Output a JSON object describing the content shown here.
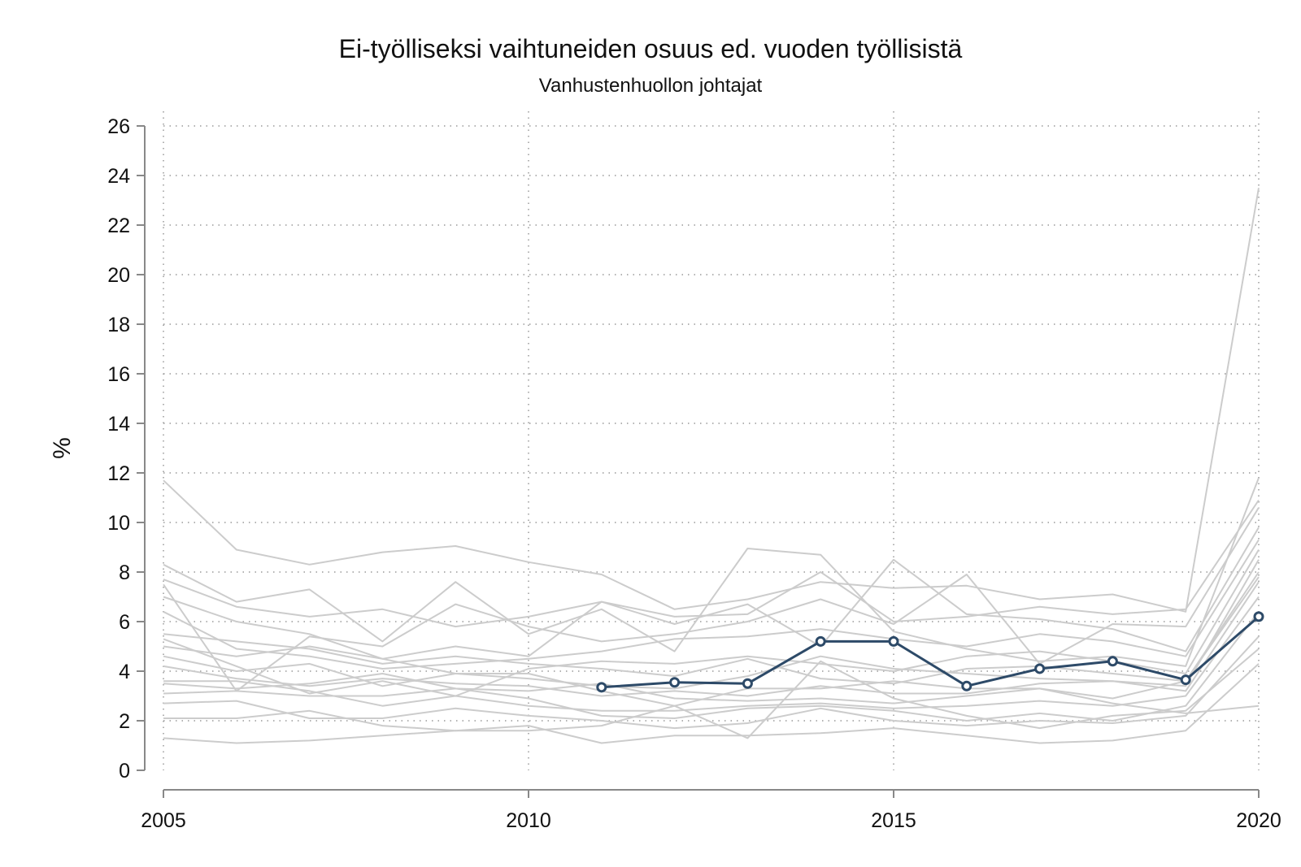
{
  "chart_data": {
    "type": "line",
    "title": "Ei-työlliseksi vaihtuneiden osuus ed. vuoden työllisistä",
    "subtitle": "Vanhustenhuollon johtajat",
    "xlabel": "",
    "ylabel": "%",
    "xlim": [
      2005,
      2020
    ],
    "ylim": [
      0,
      26
    ],
    "x_ticks": [
      "2005",
      "2010",
      "2015",
      "2020"
    ],
    "y_ticks": [
      "0",
      "2",
      "4",
      "6",
      "8",
      "10",
      "12",
      "14",
      "16",
      "18",
      "20",
      "22",
      "24",
      "26"
    ],
    "grid": "dotted",
    "colors": {
      "highlight": "#2d4a68",
      "background": "#cccccc",
      "grid": "#999999",
      "axis": "#888888"
    },
    "highlight_series": {
      "x": [
        2011,
        2012,
        2013,
        2014,
        2015,
        2016,
        2017,
        2018,
        2019,
        2020
      ],
      "values": [
        3.35,
        3.55,
        3.5,
        5.2,
        5.2,
        3.4,
        4.1,
        4.4,
        3.65,
        6.2
      ]
    },
    "background_series": [
      {
        "x": [
          2005,
          2006,
          2007,
          2008,
          2009,
          2010,
          2011,
          2012,
          2013,
          2014,
          2015,
          2016,
          2017,
          2018,
          2019,
          2020
        ],
        "values": [
          11.7,
          8.9,
          8.3,
          8.8,
          9.05,
          8.4,
          7.9,
          6.5,
          6.9,
          7.6,
          7.35,
          7.45,
          6.9,
          7.1,
          6.4,
          23.5
        ]
      },
      {
        "x": [
          2005,
          2006,
          2007,
          2008,
          2009,
          2010,
          2011,
          2012,
          2013,
          2014,
          2015,
          2016,
          2017,
          2018,
          2019,
          2020
        ],
        "values": [
          8.3,
          6.8,
          7.3,
          5.2,
          7.6,
          5.5,
          6.5,
          4.8,
          8.95,
          8.7,
          5.6,
          4.9,
          4.4,
          4.6,
          4.2,
          11.8
        ]
      },
      {
        "x": [
          2005,
          2006,
          2007,
          2008,
          2009,
          2010,
          2011,
          2012,
          2013,
          2014,
          2015,
          2016,
          2017,
          2018,
          2019,
          2020
        ],
        "values": [
          7.7,
          6.6,
          6.2,
          6.5,
          5.8,
          6.2,
          6.8,
          6.2,
          6.3,
          8.0,
          6.0,
          6.2,
          6.6,
          6.3,
          6.5,
          10.9
        ]
      },
      {
        "x": [
          2005,
          2006,
          2007,
          2008,
          2009,
          2010,
          2011,
          2012,
          2013,
          2014,
          2015,
          2016,
          2017,
          2018,
          2019,
          2020
        ],
        "values": [
          7.5,
          3.2,
          5.4,
          5.0,
          6.7,
          5.8,
          5.2,
          5.5,
          6.0,
          6.9,
          5.9,
          7.9,
          4.3,
          5.9,
          5.8,
          10.6
        ]
      },
      {
        "x": [
          2005,
          2006,
          2007,
          2008,
          2009,
          2010,
          2011,
          2012,
          2013,
          2014,
          2015,
          2016,
          2017,
          2018,
          2019,
          2020
        ],
        "values": [
          7.0,
          6.0,
          5.5,
          4.5,
          5.0,
          4.6,
          6.8,
          5.9,
          6.7,
          5.0,
          8.5,
          6.3,
          6.1,
          5.7,
          4.8,
          9.8
        ]
      },
      {
        "x": [
          2005,
          2006,
          2007,
          2008,
          2009,
          2010,
          2011,
          2012,
          2013,
          2014,
          2015,
          2016,
          2017,
          2018,
          2019,
          2020
        ],
        "values": [
          6.4,
          4.9,
          4.6,
          4.1,
          4.3,
          4.5,
          4.8,
          5.3,
          5.4,
          5.7,
          5.3,
          5.0,
          5.5,
          5.2,
          4.6,
          9.3
        ]
      },
      {
        "x": [
          2005,
          2006,
          2007,
          2008,
          2009,
          2010,
          2011,
          2012,
          2013,
          2014,
          2015,
          2016,
          2017,
          2018,
          2019,
          2020
        ],
        "values": [
          5.3,
          4.2,
          3.1,
          3.6,
          3.0,
          4.1,
          4.4,
          4.3,
          4.6,
          4.3,
          4.0,
          4.6,
          4.8,
          4.4,
          3.9,
          8.9
        ]
      },
      {
        "x": [
          2005,
          2006,
          2007,
          2008,
          2009,
          2010,
          2011,
          2012,
          2013,
          2014,
          2015,
          2016,
          2017,
          2018,
          2019,
          2020
        ],
        "values": [
          5.0,
          4.6,
          5.0,
          4.5,
          3.9,
          3.7,
          3.4,
          3.3,
          3.8,
          4.6,
          4.1,
          3.9,
          3.7,
          3.6,
          3.4,
          8.5
        ]
      },
      {
        "x": [
          2005,
          2006,
          2007,
          2008,
          2009,
          2010,
          2011,
          2012,
          2013,
          2014,
          2015,
          2016,
          2017,
          2018,
          2019,
          2020
        ],
        "values": [
          4.6,
          4.0,
          4.3,
          3.4,
          3.9,
          3.9,
          3.2,
          2.6,
          3.3,
          3.3,
          3.6,
          3.3,
          3.3,
          2.9,
          3.6,
          8.0
        ]
      },
      {
        "x": [
          2005,
          2006,
          2007,
          2008,
          2009,
          2010,
          2011,
          2012,
          2013,
          2014,
          2015,
          2016,
          2017,
          2018,
          2019,
          2020
        ],
        "values": [
          4.2,
          3.7,
          3.4,
          3.7,
          3.5,
          3.4,
          3.0,
          3.2,
          3.0,
          3.4,
          3.1,
          3.1,
          3.5,
          3.6,
          3.2,
          7.6
        ]
      },
      {
        "x": [
          2005,
          2006,
          2007,
          2008,
          2009,
          2010,
          2011,
          2012,
          2013,
          2014,
          2015,
          2016,
          2017,
          2018,
          2019,
          2020
        ],
        "values": [
          3.6,
          3.6,
          3.2,
          2.6,
          3.0,
          2.6,
          2.4,
          2.4,
          2.6,
          2.7,
          2.5,
          2.6,
          2.8,
          2.6,
          3.0,
          7.0
        ]
      },
      {
        "x": [
          2005,
          2006,
          2007,
          2008,
          2009,
          2010,
          2011,
          2012,
          2013,
          2014,
          2015,
          2016,
          2017,
          2018,
          2019,
          2020
        ],
        "values": [
          3.1,
          3.2,
          3.0,
          3.0,
          3.3,
          2.9,
          2.2,
          2.1,
          2.5,
          2.6,
          2.4,
          2.0,
          2.3,
          2.0,
          2.6,
          6.4
        ]
      },
      {
        "x": [
          2005,
          2006,
          2007,
          2008,
          2009,
          2010,
          2011,
          2012,
          2013,
          2014,
          2015,
          2016,
          2017,
          2018,
          2019,
          2020
        ],
        "values": [
          2.7,
          2.8,
          2.1,
          2.1,
          2.5,
          2.2,
          2.0,
          1.7,
          1.9,
          2.5,
          2.0,
          1.8,
          2.0,
          1.9,
          2.2,
          5.4
        ]
      },
      {
        "x": [
          2005,
          2006,
          2007,
          2008,
          2009,
          2010,
          2011,
          2012,
          2013,
          2014,
          2015,
          2016,
          2017,
          2018,
          2019,
          2020
        ],
        "values": [
          2.1,
          2.1,
          2.4,
          1.8,
          1.6,
          1.6,
          1.8,
          2.6,
          1.3,
          4.4,
          2.9,
          2.2,
          1.7,
          2.2,
          2.4,
          4.9
        ]
      },
      {
        "x": [
          2005,
          2006,
          2007,
          2008,
          2009,
          2010,
          2011,
          2012,
          2013,
          2014,
          2015,
          2016,
          2017,
          2018,
          2019,
          2020
        ],
        "values": [
          1.3,
          1.1,
          1.2,
          1.4,
          1.6,
          1.8,
          1.1,
          1.4,
          1.4,
          1.5,
          1.7,
          1.4,
          1.1,
          1.2,
          1.6,
          4.3
        ]
      },
      {
        "x": [
          2005,
          2006,
          2007,
          2008,
          2009,
          2010,
          2011,
          2012,
          2013,
          2014,
          2015,
          2016,
          2017,
          2018,
          2019,
          2020
        ],
        "values": [
          3.5,
          3.3,
          3.5,
          3.9,
          3.3,
          3.2,
          3.5,
          2.9,
          2.8,
          2.9,
          2.7,
          3.0,
          3.3,
          2.7,
          2.3,
          2.6
        ]
      },
      {
        "x": [
          2005,
          2006,
          2007,
          2008,
          2009,
          2010,
          2011,
          2012,
          2013,
          2014,
          2015,
          2016,
          2017,
          2018,
          2019,
          2020
        ],
        "values": [
          5.5,
          5.2,
          4.9,
          4.3,
          4.6,
          4.3,
          4.1,
          3.8,
          4.5,
          3.7,
          3.5,
          4.1,
          4.2,
          3.9,
          3.6,
          7.8
        ]
      }
    ]
  }
}
